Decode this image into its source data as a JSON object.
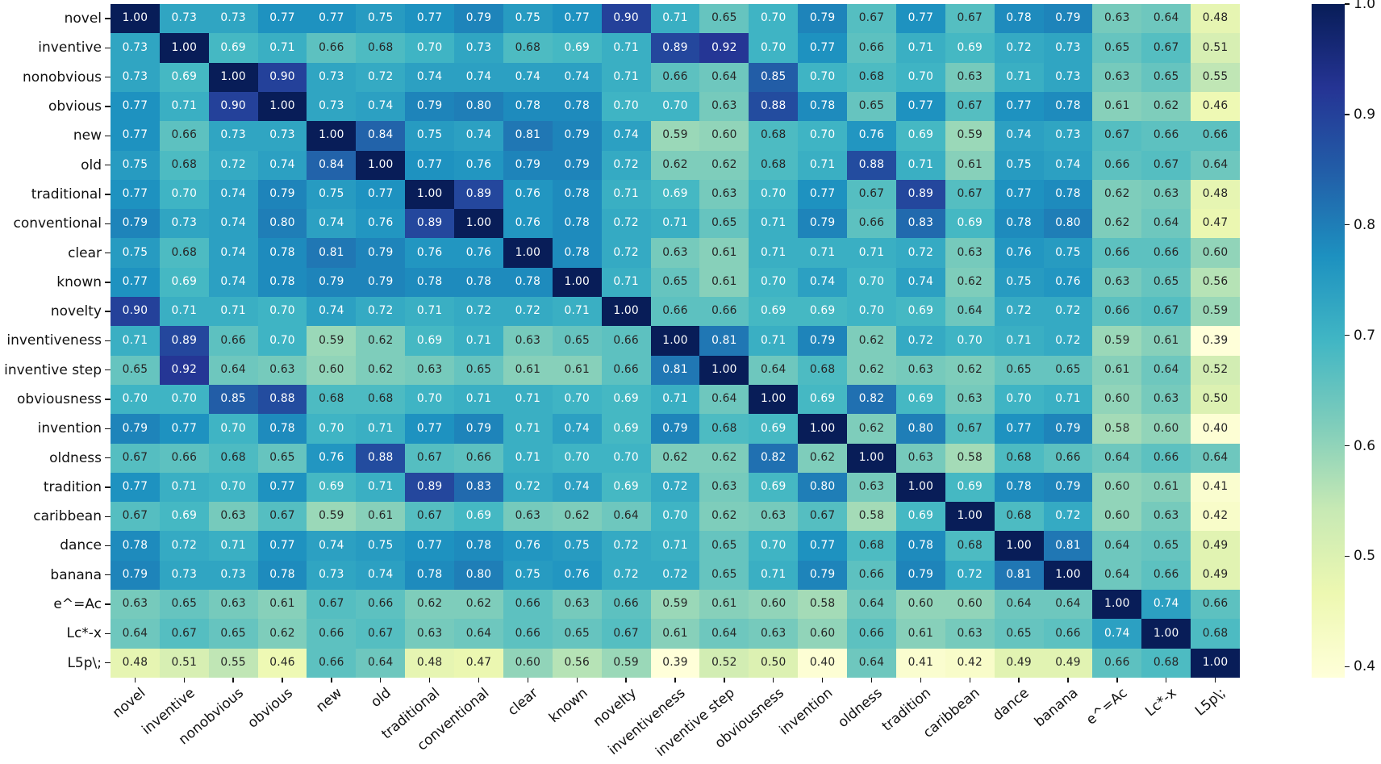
{
  "chart_data": {
    "type": "heatmap",
    "title": "",
    "xlabel": "",
    "ylabel": "",
    "grid": false,
    "annotated": true,
    "legend_position": "colorbar-right",
    "labels": [
      "novel",
      "inventive",
      "nonobvious",
      "obvious",
      "new",
      "old",
      "traditional",
      "conventional",
      "clear",
      "known",
      "novelty",
      "inventiveness",
      "inventive step",
      "obviousness",
      "invention",
      "oldness",
      "tradition",
      "caribbean",
      "dance",
      "banana",
      "e^=Ac",
      "Lc*-x",
      "L5p\\;"
    ],
    "matrix": [
      [
        1.0,
        0.73,
        0.73,
        0.77,
        0.77,
        0.75,
        0.77,
        0.79,
        0.75,
        0.77,
        0.9,
        0.71,
        0.65,
        0.7,
        0.79,
        0.67,
        0.77,
        0.67,
        0.78,
        0.79,
        0.63,
        0.64,
        0.48
      ],
      [
        0.73,
        1.0,
        0.69,
        0.71,
        0.66,
        0.68,
        0.7,
        0.73,
        0.68,
        0.69,
        0.71,
        0.89,
        0.92,
        0.7,
        0.77,
        0.66,
        0.71,
        0.69,
        0.72,
        0.73,
        0.65,
        0.67,
        0.51
      ],
      [
        0.73,
        0.69,
        1.0,
        0.9,
        0.73,
        0.72,
        0.74,
        0.74,
        0.74,
        0.74,
        0.71,
        0.66,
        0.64,
        0.85,
        0.7,
        0.68,
        0.7,
        0.63,
        0.71,
        0.73,
        0.63,
        0.65,
        0.55
      ],
      [
        0.77,
        0.71,
        0.9,
        1.0,
        0.73,
        0.74,
        0.79,
        0.8,
        0.78,
        0.78,
        0.7,
        0.7,
        0.63,
        0.88,
        0.78,
        0.65,
        0.77,
        0.67,
        0.77,
        0.78,
        0.61,
        0.62,
        0.46
      ],
      [
        0.77,
        0.66,
        0.73,
        0.73,
        1.0,
        0.84,
        0.75,
        0.74,
        0.81,
        0.79,
        0.74,
        0.59,
        0.6,
        0.68,
        0.7,
        0.76,
        0.69,
        0.59,
        0.74,
        0.73,
        0.67,
        0.66,
        0.66
      ],
      [
        0.75,
        0.68,
        0.72,
        0.74,
        0.84,
        1.0,
        0.77,
        0.76,
        0.79,
        0.79,
        0.72,
        0.62,
        0.62,
        0.68,
        0.71,
        0.88,
        0.71,
        0.61,
        0.75,
        0.74,
        0.66,
        0.67,
        0.64
      ],
      [
        0.77,
        0.7,
        0.74,
        0.79,
        0.75,
        0.77,
        1.0,
        0.89,
        0.76,
        0.78,
        0.71,
        0.69,
        0.63,
        0.7,
        0.77,
        0.67,
        0.89,
        0.67,
        0.77,
        0.78,
        0.62,
        0.63,
        0.48
      ],
      [
        0.79,
        0.73,
        0.74,
        0.8,
        0.74,
        0.76,
        0.89,
        1.0,
        0.76,
        0.78,
        0.72,
        0.71,
        0.65,
        0.71,
        0.79,
        0.66,
        0.83,
        0.69,
        0.78,
        0.8,
        0.62,
        0.64,
        0.47
      ],
      [
        0.75,
        0.68,
        0.74,
        0.78,
        0.81,
        0.79,
        0.76,
        0.76,
        1.0,
        0.78,
        0.72,
        0.63,
        0.61,
        0.71,
        0.71,
        0.71,
        0.72,
        0.63,
        0.76,
        0.75,
        0.66,
        0.66,
        0.6
      ],
      [
        0.77,
        0.69,
        0.74,
        0.78,
        0.79,
        0.79,
        0.78,
        0.78,
        0.78,
        1.0,
        0.71,
        0.65,
        0.61,
        0.7,
        0.74,
        0.7,
        0.74,
        0.62,
        0.75,
        0.76,
        0.63,
        0.65,
        0.56
      ],
      [
        0.9,
        0.71,
        0.71,
        0.7,
        0.74,
        0.72,
        0.71,
        0.72,
        0.72,
        0.71,
        1.0,
        0.66,
        0.66,
        0.69,
        0.69,
        0.7,
        0.69,
        0.64,
        0.72,
        0.72,
        0.66,
        0.67,
        0.59
      ],
      [
        0.71,
        0.89,
        0.66,
        0.7,
        0.59,
        0.62,
        0.69,
        0.71,
        0.63,
        0.65,
        0.66,
        1.0,
        0.81,
        0.71,
        0.79,
        0.62,
        0.72,
        0.7,
        0.71,
        0.72,
        0.59,
        0.61,
        0.39
      ],
      [
        0.65,
        0.92,
        0.64,
        0.63,
        0.6,
        0.62,
        0.63,
        0.65,
        0.61,
        0.61,
        0.66,
        0.81,
        1.0,
        0.64,
        0.68,
        0.62,
        0.63,
        0.62,
        0.65,
        0.65,
        0.61,
        0.64,
        0.52
      ],
      [
        0.7,
        0.7,
        0.85,
        0.88,
        0.68,
        0.68,
        0.7,
        0.71,
        0.71,
        0.7,
        0.69,
        0.71,
        0.64,
        1.0,
        0.69,
        0.82,
        0.69,
        0.63,
        0.7,
        0.71,
        0.6,
        0.63,
        0.5
      ],
      [
        0.79,
        0.77,
        0.7,
        0.78,
        0.7,
        0.71,
        0.77,
        0.79,
        0.71,
        0.74,
        0.69,
        0.79,
        0.68,
        0.69,
        1.0,
        0.62,
        0.8,
        0.67,
        0.77,
        0.79,
        0.58,
        0.6,
        0.4
      ],
      [
        0.67,
        0.66,
        0.68,
        0.65,
        0.76,
        0.88,
        0.67,
        0.66,
        0.71,
        0.7,
        0.7,
        0.62,
        0.62,
        0.82,
        0.62,
        1.0,
        0.63,
        0.58,
        0.68,
        0.66,
        0.64,
        0.66,
        0.64
      ],
      [
        0.77,
        0.71,
        0.7,
        0.77,
        0.69,
        0.71,
        0.89,
        0.83,
        0.72,
        0.74,
        0.69,
        0.72,
        0.63,
        0.69,
        0.8,
        0.63,
        1.0,
        0.69,
        0.78,
        0.79,
        0.6,
        0.61,
        0.41
      ],
      [
        0.67,
        0.69,
        0.63,
        0.67,
        0.59,
        0.61,
        0.67,
        0.69,
        0.63,
        0.62,
        0.64,
        0.7,
        0.62,
        0.63,
        0.67,
        0.58,
        0.69,
        1.0,
        0.68,
        0.72,
        0.6,
        0.63,
        0.42
      ],
      [
        0.78,
        0.72,
        0.71,
        0.77,
        0.74,
        0.75,
        0.77,
        0.78,
        0.76,
        0.75,
        0.72,
        0.71,
        0.65,
        0.7,
        0.77,
        0.68,
        0.78,
        0.68,
        1.0,
        0.81,
        0.64,
        0.65,
        0.49
      ],
      [
        0.79,
        0.73,
        0.73,
        0.78,
        0.73,
        0.74,
        0.78,
        0.8,
        0.75,
        0.76,
        0.72,
        0.72,
        0.65,
        0.71,
        0.79,
        0.66,
        0.79,
        0.72,
        0.81,
        1.0,
        0.64,
        0.66,
        0.49
      ],
      [
        0.63,
        0.65,
        0.63,
        0.61,
        0.67,
        0.66,
        0.62,
        0.62,
        0.66,
        0.63,
        0.66,
        0.59,
        0.61,
        0.6,
        0.58,
        0.64,
        0.6,
        0.6,
        0.64,
        0.64,
        1.0,
        0.74,
        0.66
      ],
      [
        0.64,
        0.67,
        0.65,
        0.62,
        0.66,
        0.67,
        0.63,
        0.64,
        0.66,
        0.65,
        0.67,
        0.61,
        0.64,
        0.63,
        0.6,
        0.66,
        0.61,
        0.63,
        0.65,
        0.66,
        0.74,
        1.0,
        0.68
      ],
      [
        0.48,
        0.51,
        0.55,
        0.46,
        0.66,
        0.64,
        0.48,
        0.47,
        0.6,
        0.56,
        0.59,
        0.39,
        0.52,
        0.5,
        0.4,
        0.64,
        0.41,
        0.42,
        0.49,
        0.49,
        0.66,
        0.68,
        1.0
      ]
    ],
    "value_format": "0.00",
    "vmin": 0.39,
    "vmax": 1.0,
    "colormap": {
      "name": "YlGnBu",
      "stops": [
        "#ffffd9",
        "#edf8b1",
        "#c7e9b4",
        "#7fcdbb",
        "#41b6c4",
        "#1d91c0",
        "#225ea8",
        "#253494",
        "#081d58"
      ]
    },
    "annotation_colors": {
      "light": "#ffffff",
      "dark": "#262626",
      "luminance_threshold": 0.408
    },
    "colorbar_ticks": [
      "1.0",
      "0.9",
      "0.8",
      "0.7",
      "0.6",
      "0.5",
      "0.4"
    ],
    "axis_label_color": "#111111",
    "background": "#ffffff"
  }
}
